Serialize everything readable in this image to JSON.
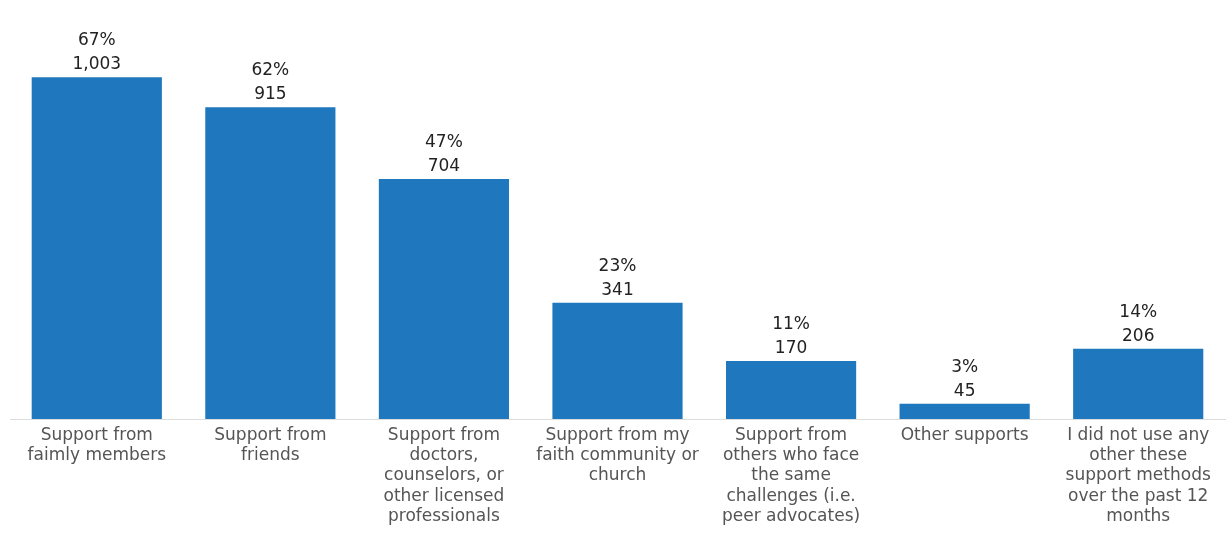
{
  "chart_data": {
    "type": "bar",
    "categories": [
      "Support from faimly members",
      "Support from friends",
      "Support from doctors, counselors, or other licensed professionals",
      "Support from my faith community or church",
      "Support from others who face the same challenges (i.e. peer advocates)",
      "Other supports",
      "I did not use any other these support methods over the past 12 months"
    ],
    "values": [
      1003,
      915,
      704,
      341,
      170,
      45,
      206
    ],
    "value_labels": [
      "67%\n1,003",
      "62%\n915",
      "47%\n704",
      "23%\n341",
      "11%\n170",
      "3%\n45",
      "14%\n206"
    ],
    "color": "#1f77bd",
    "grid": false,
    "legend": false
  }
}
